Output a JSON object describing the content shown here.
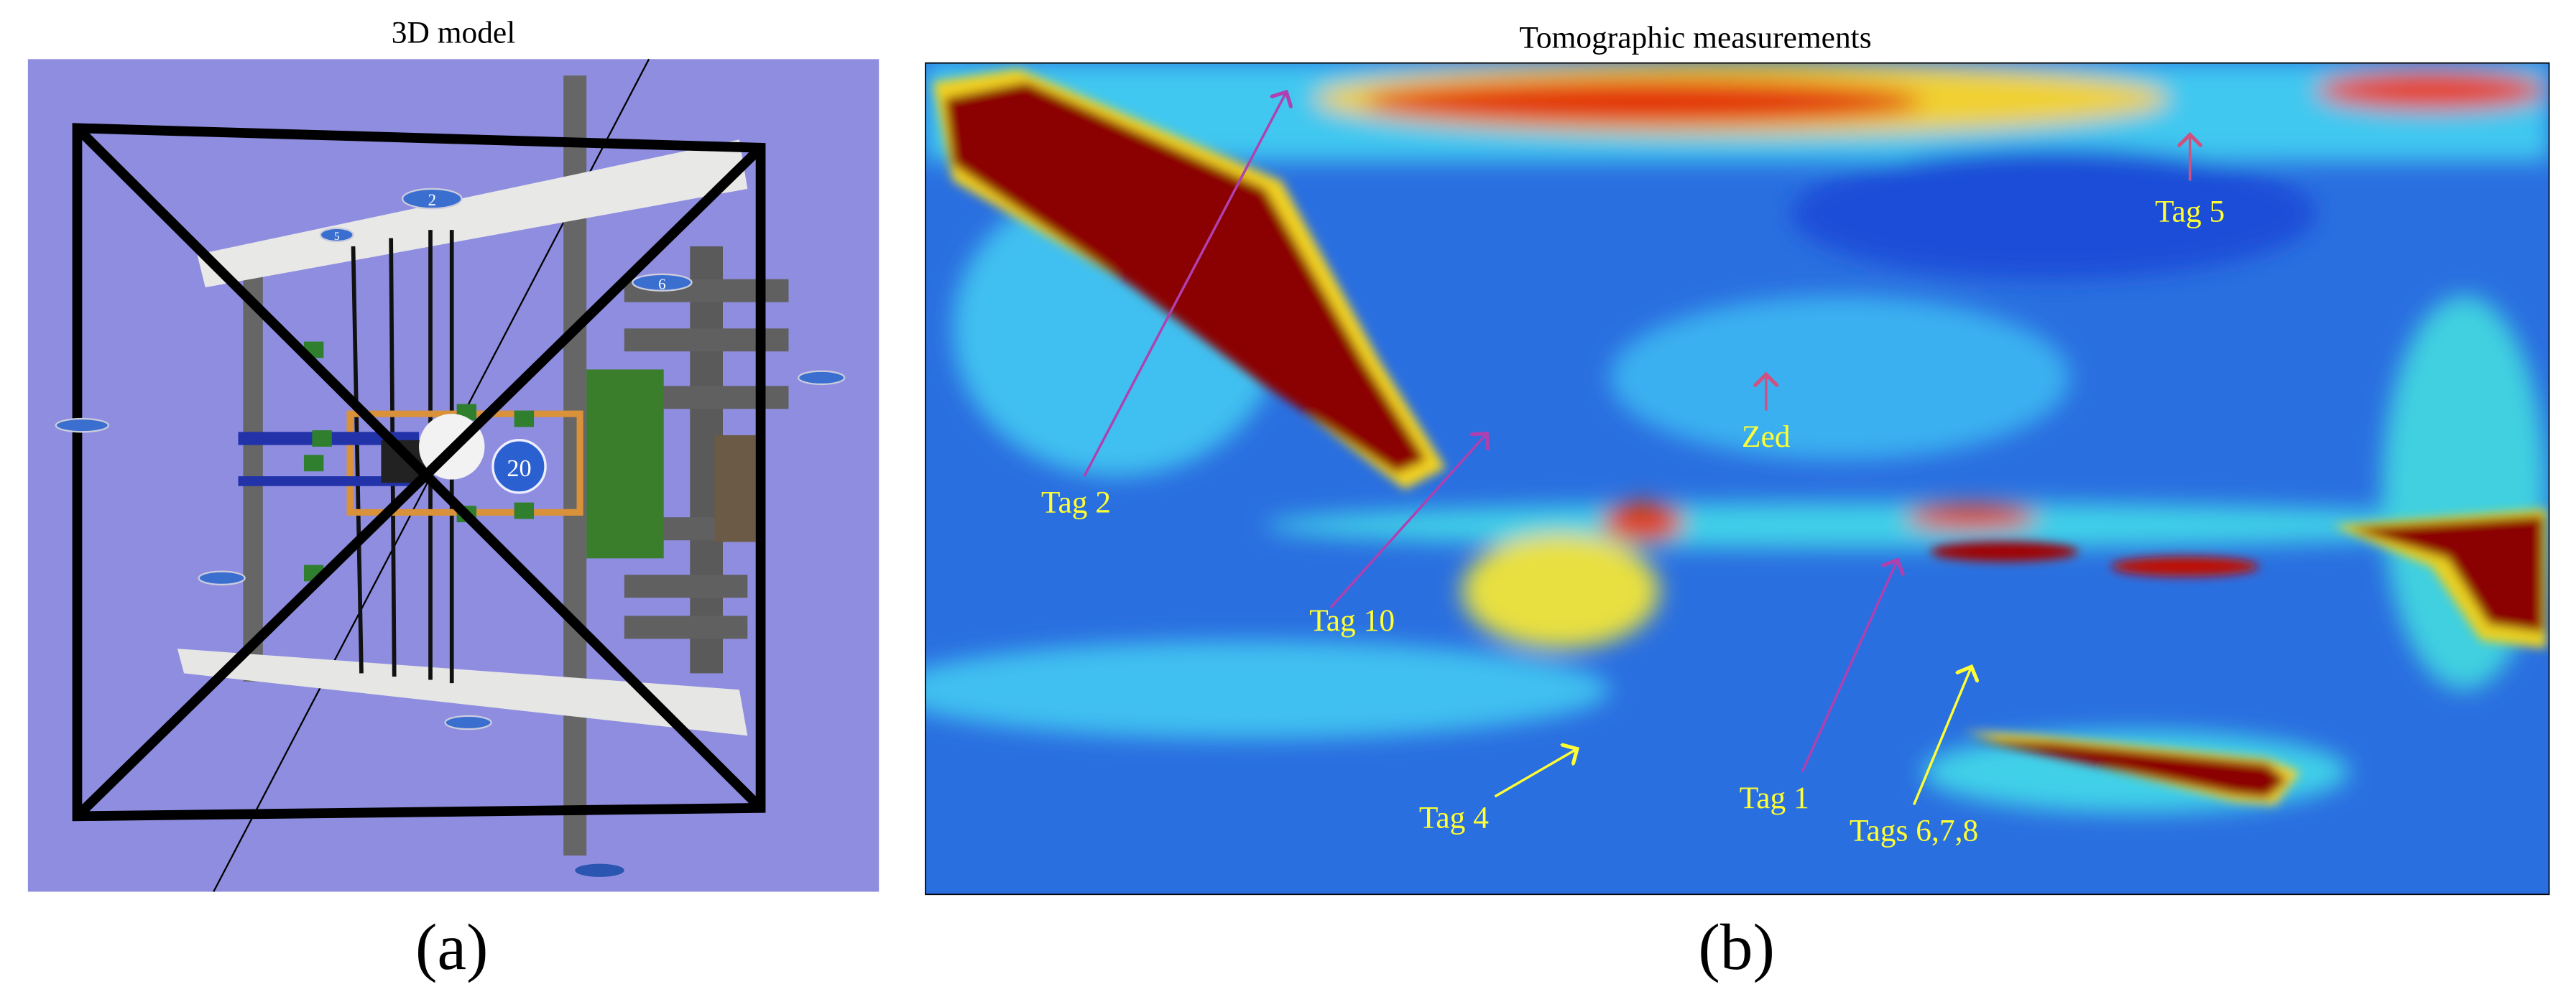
{
  "panels": [
    {
      "title": "3D model",
      "label": "(a)",
      "markers": [
        "2",
        "5",
        "6",
        "20"
      ]
    },
    {
      "title": "Tomographic measurements",
      "label": "(b)",
      "annotations": [
        "Tag 2",
        "Tag 10",
        "Zed",
        "Tag 5",
        "Tag 4",
        "Tag 1",
        "Tags 6,7,8"
      ]
    }
  ]
}
